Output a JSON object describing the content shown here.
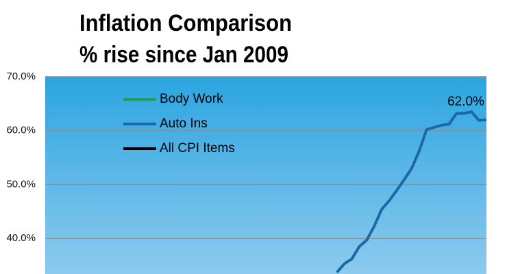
{
  "chart_data": {
    "type": "line",
    "title": "Inflation Comparison",
    "subtitle": "% rise since Jan 2009",
    "series": [
      {
        "name": "Body Work",
        "color": "#1fa050",
        "values": [
          null,
          null,
          null,
          null,
          null,
          null,
          null,
          null,
          null,
          null,
          null,
          null,
          null,
          null,
          null,
          null,
          null,
          null,
          null,
          null,
          null,
          null,
          null,
          null,
          null,
          null,
          null,
          null,
          null,
          null,
          null,
          null,
          null,
          null,
          null,
          null,
          null,
          null,
          null,
          null,
          null,
          null,
          null,
          null,
          null,
          null,
          null,
          null,
          null,
          null,
          null,
          null,
          null,
          null,
          null,
          null,
          null,
          null,
          null,
          null
        ]
      },
      {
        "name": "Auto Ins",
        "color": "#1b68a6",
        "values": [
          null,
          null,
          null,
          null,
          null,
          null,
          null,
          null,
          null,
          null,
          null,
          null,
          null,
          null,
          null,
          null,
          null,
          null,
          null,
          null,
          null,
          null,
          null,
          null,
          null,
          null,
          null,
          null,
          null,
          null,
          null,
          null,
          null,
          null,
          null,
          null,
          null,
          null,
          null,
          33.7,
          35.3,
          36.2,
          38.5,
          39.7,
          42.3,
          45.4,
          47.0,
          48.9,
          50.9,
          53.0,
          56.2,
          60.2,
          60.6,
          61.0,
          61.2,
          63.2,
          63.2,
          63.5,
          61.9,
          62.0
        ],
        "value_labels": [
          null,
          null,
          null,
          null,
          null,
          null,
          null,
          null,
          null,
          null,
          null,
          null,
          null,
          null,
          null,
          null,
          null,
          null,
          null,
          null,
          null,
          null,
          null,
          null,
          null,
          null,
          null,
          null,
          null,
          null,
          null,
          null,
          null,
          null,
          null,
          null,
          null,
          null,
          null,
          null,
          null,
          null,
          null,
          null,
          null,
          null,
          null,
          null,
          null,
          null,
          null,
          null,
          null,
          null,
          null,
          null,
          null,
          null,
          null,
          "62.0%"
        ]
      },
      {
        "name": "All CPI Items",
        "color": "#000000",
        "values": [
          null,
          null,
          null,
          null,
          null,
          null,
          null,
          null,
          null,
          null,
          null,
          null,
          null,
          null,
          null,
          null,
          null,
          null,
          null,
          null,
          null,
          null,
          null,
          null,
          null,
          null,
          null,
          null,
          null,
          null,
          null,
          null,
          null,
          null,
          null,
          null,
          null,
          null,
          null,
          null,
          null,
          null,
          null,
          null,
          null,
          null,
          null,
          null,
          null,
          null,
          null,
          null,
          null,
          null,
          null,
          null,
          null,
          null,
          null,
          null
        ]
      }
    ],
    "ylim": [
      33.4,
      70
    ],
    "yticks": [
      {
        "value": 40,
        "label": "40.0%"
      },
      {
        "value": 50,
        "label": "50.0%"
      },
      {
        "value": 60,
        "label": "60.0%"
      },
      {
        "value": 70,
        "label": "70.0%"
      }
    ],
    "grid": true
  }
}
